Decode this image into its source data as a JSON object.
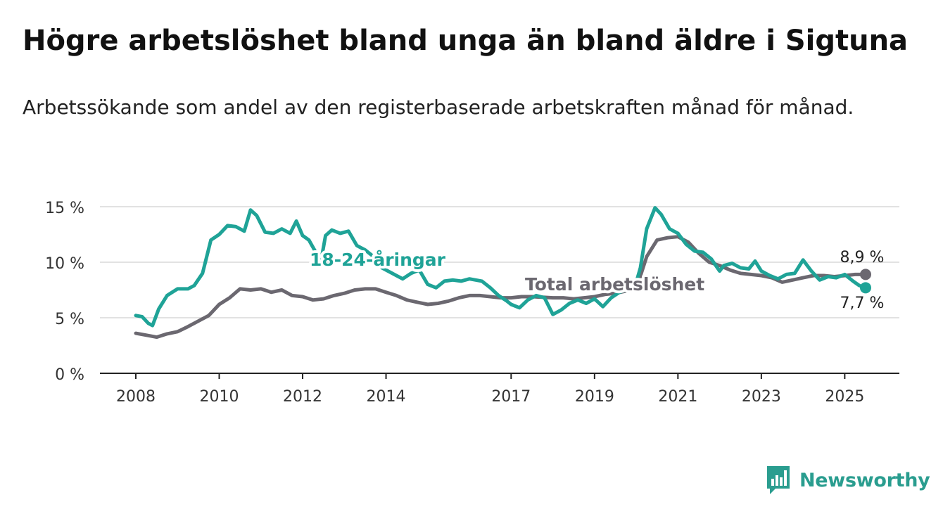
{
  "title": "Högre arbetslöshet bland unga än bland äldre i Sigtuna",
  "subtitle": "Arbetssökande som andel av den registerbaserade arbetskraften månad för månad.",
  "brand": {
    "name": "Newsworthy",
    "color": "#2a9d8f"
  },
  "chart_data": {
    "type": "line",
    "title": "Högre arbetslöshet bland unga än bland äldre i Sigtuna",
    "subtitle": "Arbetssökande som andel av den registerbaserade arbetskraften månad för månad.",
    "xlabel": "",
    "ylabel": "",
    "xlim": [
      2008.0,
      2026.3
    ],
    "ylim": [
      0,
      15
    ],
    "x_ticks": [
      2008,
      2010,
      2012,
      2014,
      2017,
      2019,
      2021,
      2023,
      2025
    ],
    "y_ticks": [
      {
        "value": 0,
        "label": "0 %"
      },
      {
        "value": 5,
        "label": "5 %"
      },
      {
        "value": 10,
        "label": "10 %"
      },
      {
        "value": 15,
        "label": "15 %"
      }
    ],
    "grid": "horizontal",
    "series": [
      {
        "name": "Total arbetslöshet",
        "color": "#6b6870",
        "end_label": "8,9 %",
        "end_value": 8.9,
        "points": [
          [
            2008.0,
            3.6
          ],
          [
            2008.3,
            3.4
          ],
          [
            2008.5,
            3.25
          ],
          [
            2008.75,
            3.55
          ],
          [
            2009.0,
            3.75
          ],
          [
            2009.25,
            4.2
          ],
          [
            2009.5,
            4.7
          ],
          [
            2009.75,
            5.2
          ],
          [
            2010.0,
            6.2
          ],
          [
            2010.25,
            6.8
          ],
          [
            2010.5,
            7.6
          ],
          [
            2010.75,
            7.5
          ],
          [
            2011.0,
            7.6
          ],
          [
            2011.25,
            7.3
          ],
          [
            2011.5,
            7.5
          ],
          [
            2011.75,
            7.0
          ],
          [
            2012.0,
            6.9
          ],
          [
            2012.25,
            6.6
          ],
          [
            2012.5,
            6.7
          ],
          [
            2012.75,
            7.0
          ],
          [
            2013.0,
            7.2
          ],
          [
            2013.25,
            7.5
          ],
          [
            2013.5,
            7.6
          ],
          [
            2013.75,
            7.6
          ],
          [
            2014.0,
            7.3
          ],
          [
            2014.25,
            7.0
          ],
          [
            2014.5,
            6.6
          ],
          [
            2014.75,
            6.4
          ],
          [
            2015.0,
            6.2
          ],
          [
            2015.25,
            6.3
          ],
          [
            2015.5,
            6.5
          ],
          [
            2015.75,
            6.8
          ],
          [
            2016.0,
            7.0
          ],
          [
            2016.25,
            7.0
          ],
          [
            2016.5,
            6.9
          ],
          [
            2016.75,
            6.8
          ],
          [
            2017.0,
            6.8
          ],
          [
            2017.25,
            6.9
          ],
          [
            2017.5,
            6.9
          ],
          [
            2017.75,
            6.85
          ],
          [
            2018.0,
            6.8
          ],
          [
            2018.25,
            6.8
          ],
          [
            2018.5,
            6.7
          ],
          [
            2018.75,
            6.8
          ],
          [
            2019.0,
            6.9
          ],
          [
            2019.25,
            7.1
          ],
          [
            2019.5,
            7.2
          ],
          [
            2019.75,
            7.4
          ],
          [
            2020.0,
            7.6
          ],
          [
            2020.25,
            10.5
          ],
          [
            2020.5,
            12.0
          ],
          [
            2020.75,
            12.2
          ],
          [
            2021.0,
            12.3
          ],
          [
            2021.25,
            11.8
          ],
          [
            2021.5,
            10.8
          ],
          [
            2021.75,
            10.0
          ],
          [
            2022.0,
            9.7
          ],
          [
            2022.25,
            9.3
          ],
          [
            2022.5,
            9.0
          ],
          [
            2022.75,
            8.9
          ],
          [
            2023.0,
            8.8
          ],
          [
            2023.25,
            8.6
          ],
          [
            2023.5,
            8.2
          ],
          [
            2023.75,
            8.4
          ],
          [
            2024.0,
            8.6
          ],
          [
            2024.25,
            8.8
          ],
          [
            2024.5,
            8.8
          ],
          [
            2024.75,
            8.7
          ],
          [
            2025.0,
            8.8
          ],
          [
            2025.25,
            8.9
          ],
          [
            2025.5,
            8.9
          ]
        ]
      },
      {
        "name": "18-24-åringar",
        "color": "#1fa397",
        "end_label": "7,7 %",
        "end_value": 7.7,
        "points": [
          [
            2008.0,
            5.2
          ],
          [
            2008.15,
            5.1
          ],
          [
            2008.3,
            4.5
          ],
          [
            2008.4,
            4.3
          ],
          [
            2008.55,
            5.8
          ],
          [
            2008.75,
            7.0
          ],
          [
            2009.0,
            7.6
          ],
          [
            2009.25,
            7.6
          ],
          [
            2009.4,
            7.9
          ],
          [
            2009.6,
            9.0
          ],
          [
            2009.8,
            12.0
          ],
          [
            2010.0,
            12.5
          ],
          [
            2010.2,
            13.3
          ],
          [
            2010.4,
            13.2
          ],
          [
            2010.6,
            12.8
          ],
          [
            2010.75,
            14.7
          ],
          [
            2010.9,
            14.2
          ],
          [
            2011.1,
            12.7
          ],
          [
            2011.3,
            12.6
          ],
          [
            2011.5,
            13.0
          ],
          [
            2011.7,
            12.6
          ],
          [
            2011.85,
            13.7
          ],
          [
            2012.0,
            12.4
          ],
          [
            2012.15,
            12.0
          ],
          [
            2012.3,
            11.0
          ],
          [
            2012.45,
            10.3
          ],
          [
            2012.55,
            12.4
          ],
          [
            2012.7,
            12.9
          ],
          [
            2012.9,
            12.6
          ],
          [
            2013.1,
            12.8
          ],
          [
            2013.3,
            11.5
          ],
          [
            2013.5,
            11.1
          ],
          [
            2013.7,
            10.5
          ],
          [
            2013.9,
            9.5
          ],
          [
            2014.2,
            8.9
          ],
          [
            2014.4,
            8.5
          ],
          [
            2014.6,
            9.0
          ],
          [
            2014.8,
            9.3
          ],
          [
            2015.0,
            8.0
          ],
          [
            2015.2,
            7.7
          ],
          [
            2015.4,
            8.3
          ],
          [
            2015.6,
            8.4
          ],
          [
            2015.8,
            8.3
          ],
          [
            2016.0,
            8.5
          ],
          [
            2016.3,
            8.3
          ],
          [
            2016.5,
            7.7
          ],
          [
            2016.7,
            7.0
          ],
          [
            2016.9,
            6.5
          ],
          [
            2017.0,
            6.2
          ],
          [
            2017.2,
            5.9
          ],
          [
            2017.4,
            6.6
          ],
          [
            2017.6,
            7.0
          ],
          [
            2017.8,
            6.8
          ],
          [
            2018.0,
            5.3
          ],
          [
            2018.2,
            5.7
          ],
          [
            2018.4,
            6.3
          ],
          [
            2018.6,
            6.6
          ],
          [
            2018.8,
            6.3
          ],
          [
            2019.0,
            6.7
          ],
          [
            2019.2,
            6.0
          ],
          [
            2019.4,
            6.8
          ],
          [
            2019.6,
            7.3
          ],
          [
            2019.8,
            7.6
          ],
          [
            2020.0,
            8.2
          ],
          [
            2020.1,
            9.5
          ],
          [
            2020.25,
            13.0
          ],
          [
            2020.45,
            14.9
          ],
          [
            2020.6,
            14.3
          ],
          [
            2020.8,
            13.0
          ],
          [
            2021.0,
            12.6
          ],
          [
            2021.2,
            11.6
          ],
          [
            2021.4,
            11.0
          ],
          [
            2021.6,
            10.9
          ],
          [
            2021.8,
            10.3
          ],
          [
            2022.0,
            9.2
          ],
          [
            2022.1,
            9.7
          ],
          [
            2022.3,
            9.9
          ],
          [
            2022.5,
            9.5
          ],
          [
            2022.7,
            9.4
          ],
          [
            2022.85,
            10.1
          ],
          [
            2023.0,
            9.2
          ],
          [
            2023.2,
            8.8
          ],
          [
            2023.4,
            8.5
          ],
          [
            2023.6,
            8.9
          ],
          [
            2023.8,
            9.0
          ],
          [
            2024.0,
            10.2
          ],
          [
            2024.2,
            9.2
          ],
          [
            2024.4,
            8.4
          ],
          [
            2024.6,
            8.7
          ],
          [
            2024.8,
            8.6
          ],
          [
            2025.0,
            8.9
          ],
          [
            2025.2,
            8.3
          ],
          [
            2025.35,
            7.9
          ],
          [
            2025.5,
            7.7
          ]
        ]
      }
    ],
    "annotations": [
      {
        "text": "18-24-åringar",
        "series": "18-24-åringar"
      },
      {
        "text": "Total arbetslöshet",
        "series": "Total arbetslöshet"
      }
    ]
  }
}
